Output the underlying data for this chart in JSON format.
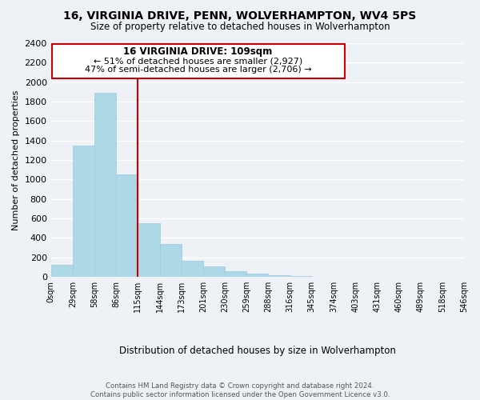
{
  "title": "16, VIRGINIA DRIVE, PENN, WOLVERHAMPTON, WV4 5PS",
  "subtitle": "Size of property relative to detached houses in Wolverhampton",
  "xlabel": "Distribution of detached houses by size in Wolverhampton",
  "ylabel": "Number of detached properties",
  "bar_values": [
    125,
    1350,
    1890,
    1050,
    550,
    340,
    165,
    105,
    60,
    30,
    15,
    5,
    3,
    2,
    2,
    1,
    1,
    1,
    1
  ],
  "bar_labels": [
    "0sqm",
    "29sqm",
    "58sqm",
    "86sqm",
    "115sqm",
    "144sqm",
    "173sqm",
    "201sqm",
    "230sqm",
    "259sqm",
    "288sqm",
    "316sqm",
    "345sqm",
    "374sqm",
    "403sqm",
    "431sqm",
    "460sqm",
    "489sqm",
    "518sqm",
    "546sqm"
  ],
  "bar_color": "#add8e6",
  "bar_edge_color": "#a0c8e0",
  "highlight_line_color": "#cc0000",
  "box_text_line1": "16 VIRGINIA DRIVE: 109sqm",
  "box_text_line2": "← 51% of detached houses are smaller (2,927)",
  "box_text_line3": "47% of semi-detached houses are larger (2,706) →",
  "box_color": "white",
  "box_edge_color": "#cc0000",
  "ylim": [
    0,
    2400
  ],
  "yticks": [
    0,
    200,
    400,
    600,
    800,
    1000,
    1200,
    1400,
    1600,
    1800,
    2000,
    2200,
    2400
  ],
  "footer_line1": "Contains HM Land Registry data © Crown copyright and database right 2024.",
  "footer_line2": "Contains public sector information licensed under the Open Government Licence v3.0.",
  "background_color": "#eef2f7",
  "grid_color": "white"
}
